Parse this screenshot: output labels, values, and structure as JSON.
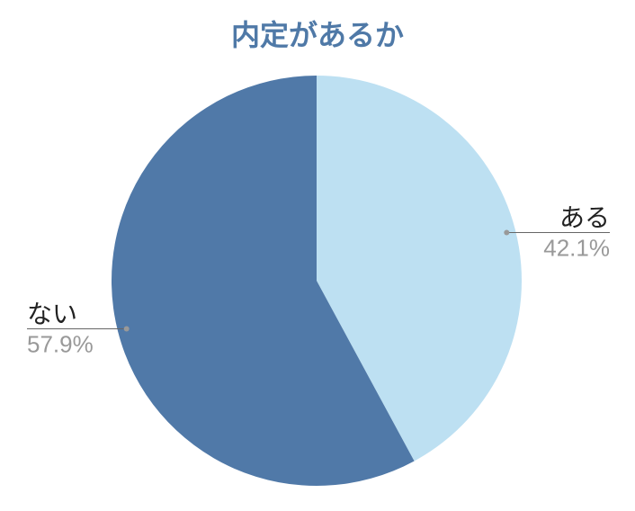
{
  "chart_data": {
    "type": "pie",
    "title": "内定があるか",
    "categories": [
      "ある",
      "ない"
    ],
    "values": [
      42.1,
      57.9
    ],
    "value_labels": [
      "42.1%",
      "57.9%"
    ],
    "colors": [
      "#bde0f2",
      "#5079a8"
    ]
  }
}
